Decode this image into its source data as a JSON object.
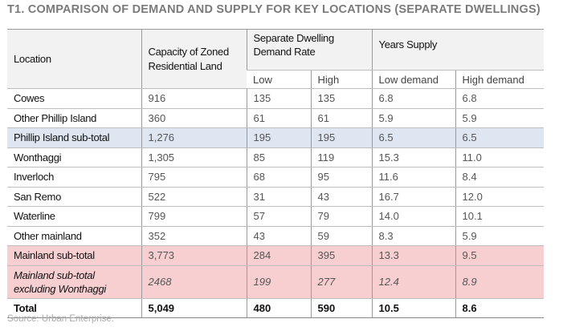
{
  "title": "T1. COMPARISON OF DEMAND AND SUPPLY FOR KEY LOCATIONS (SEPARATE DWELLINGS)",
  "headers": {
    "location": "Location",
    "capacity": "Capacity of Zoned Residential Land",
    "demand_rate": "Separate Dwelling Demand Rate",
    "years_supply": "Years Supply",
    "low": "Low",
    "high": "High",
    "low_demand": "Low demand",
    "high_demand": "High demand"
  },
  "rows": [
    [
      "Cowes",
      "916",
      "135",
      "135",
      "6.8",
      "6.8"
    ],
    [
      "Other Phillip Island",
      "360",
      "61",
      "61",
      "5.9",
      "5.9"
    ],
    [
      "Phillip Island sub-total",
      "1,276",
      "195",
      "195",
      "6.5",
      "6.5"
    ],
    [
      "Wonthaggi",
      "1,305",
      "85",
      "119",
      "15.3",
      "11.0"
    ],
    [
      "Inverloch",
      "795",
      "68",
      "95",
      "11.6",
      "8.4"
    ],
    [
      "San Remo",
      "522",
      "31",
      "43",
      "16.7",
      "12.0"
    ],
    [
      "Waterline",
      "799",
      "57",
      "79",
      "14.0",
      "10.1"
    ],
    [
      "Other mainland",
      "352",
      "43",
      "59",
      "8.3",
      "5.9"
    ],
    [
      "Mainland sub-total",
      "3,773",
      "284",
      "395",
      "13.3",
      "9.5"
    ],
    [
      "Mainland sub-total excluding Wonthaggi",
      "2468",
      "199",
      "277",
      "12.4",
      "8.9"
    ],
    [
      "Total",
      "5,049",
      "480",
      "590",
      "10.5",
      "8.6"
    ]
  ],
  "source": "Source: Urban Enterprise.",
  "colors": {
    "phillip_subtotal": "#dde6f1",
    "mainland_subtotal": "#f8cfd1",
    "header": "#f2f2f2"
  }
}
